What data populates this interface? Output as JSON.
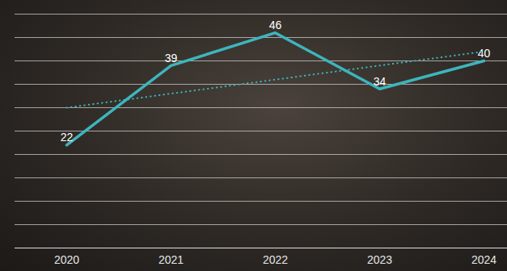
{
  "chart_data": {
    "type": "line",
    "categories": [
      "2020",
      "2021",
      "2022",
      "2023",
      "2024"
    ],
    "series": [
      {
        "values": [
          22,
          39,
          46,
          34,
          40
        ],
        "color": "#3db5bd",
        "line_style": "solid",
        "data_labels": true
      },
      {
        "values": [
          30,
          33,
          36,
          39,
          42
        ],
        "color": "#3db5bd",
        "line_style": "dotted"
      }
    ],
    "ylim": [
      0,
      50
    ],
    "yticks": [
      0,
      5,
      10,
      15,
      20,
      25,
      30,
      35,
      40,
      45,
      50
    ],
    "grid": true,
    "tick_labels": "x"
  }
}
